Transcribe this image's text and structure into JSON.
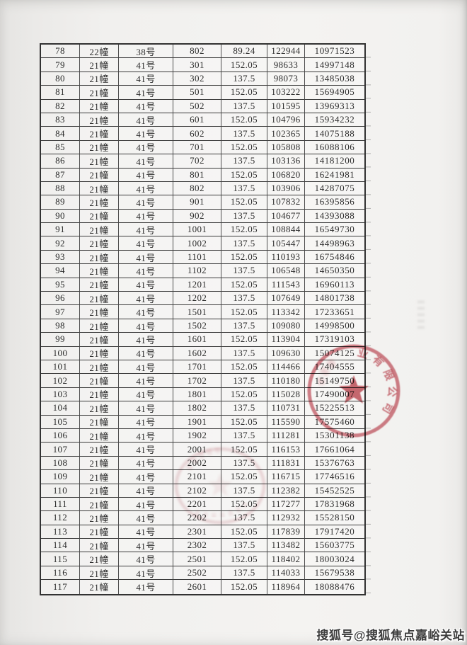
{
  "table": {
    "rows": [
      [
        "78",
        "22幢",
        "38号",
        "802",
        "89.24",
        "122944",
        "10971523"
      ],
      [
        "79",
        "21幢",
        "41号",
        "301",
        "152.05",
        "98633",
        "14997148"
      ],
      [
        "80",
        "21幢",
        "41号",
        "302",
        "137.5",
        "98073",
        "13485038"
      ],
      [
        "81",
        "21幢",
        "41号",
        "501",
        "152.05",
        "103222",
        "15694905"
      ],
      [
        "82",
        "21幢",
        "41号",
        "502",
        "137.5",
        "101595",
        "13969313"
      ],
      [
        "83",
        "21幢",
        "41号",
        "601",
        "152.05",
        "104796",
        "15934232"
      ],
      [
        "84",
        "21幢",
        "41号",
        "602",
        "137.5",
        "102365",
        "14075188"
      ],
      [
        "85",
        "21幢",
        "41号",
        "701",
        "152.05",
        "105808",
        "16088106"
      ],
      [
        "86",
        "21幢",
        "41号",
        "702",
        "137.5",
        "103136",
        "14181200"
      ],
      [
        "87",
        "21幢",
        "41号",
        "801",
        "152.05",
        "106820",
        "16241981"
      ],
      [
        "88",
        "21幢",
        "41号",
        "802",
        "137.5",
        "103906",
        "14287075"
      ],
      [
        "89",
        "21幢",
        "41号",
        "901",
        "152.05",
        "107832",
        "16395856"
      ],
      [
        "90",
        "21幢",
        "41号",
        "902",
        "137.5",
        "104677",
        "14393088"
      ],
      [
        "91",
        "21幢",
        "41号",
        "1001",
        "152.05",
        "108844",
        "16549730"
      ],
      [
        "92",
        "21幢",
        "41号",
        "1002",
        "137.5",
        "105447",
        "14498963"
      ],
      [
        "93",
        "21幢",
        "41号",
        "1101",
        "152.05",
        "110193",
        "16754846"
      ],
      [
        "94",
        "21幢",
        "41号",
        "1102",
        "137.5",
        "106548",
        "14650350"
      ],
      [
        "95",
        "21幢",
        "41号",
        "1201",
        "152.05",
        "111543",
        "16960113"
      ],
      [
        "96",
        "21幢",
        "41号",
        "1202",
        "137.5",
        "107649",
        "14801738"
      ],
      [
        "97",
        "21幢",
        "41号",
        "1501",
        "152.05",
        "113342",
        "17233651"
      ],
      [
        "98",
        "21幢",
        "41号",
        "1502",
        "137.5",
        "109080",
        "14998500"
      ],
      [
        "99",
        "21幢",
        "41号",
        "1601",
        "152.05",
        "113904",
        "17319103"
      ],
      [
        "100",
        "21幢",
        "41号",
        "1602",
        "137.5",
        "109630",
        "15074125"
      ],
      [
        "101",
        "21幢",
        "41号",
        "1701",
        "152.05",
        "114466",
        "17404555"
      ],
      [
        "102",
        "21幢",
        "41号",
        "1702",
        "137.5",
        "110180",
        "15149750"
      ],
      [
        "103",
        "21幢",
        "41号",
        "1801",
        "152.05",
        "115028",
        "17490007"
      ],
      [
        "104",
        "21幢",
        "41号",
        "1802",
        "137.5",
        "110731",
        "15225513"
      ],
      [
        "105",
        "21幢",
        "41号",
        "1901",
        "152.05",
        "115590",
        "17575460"
      ],
      [
        "106",
        "21幢",
        "41号",
        "1902",
        "137.5",
        "111281",
        "15301138"
      ],
      [
        "107",
        "21幢",
        "41号",
        "2001",
        "152.05",
        "116153",
        "17661064"
      ],
      [
        "108",
        "21幢",
        "41号",
        "2002",
        "137.5",
        "111831",
        "15376763"
      ],
      [
        "109",
        "21幢",
        "41号",
        "2101",
        "152.05",
        "116715",
        "17746516"
      ],
      [
        "110",
        "21幢",
        "41号",
        "2102",
        "137.5",
        "112382",
        "15452525"
      ],
      [
        "111",
        "21幢",
        "41号",
        "2201",
        "152.05",
        "117277",
        "17831968"
      ],
      [
        "112",
        "21幢",
        "41号",
        "2202",
        "137.5",
        "112932",
        "15528150"
      ],
      [
        "113",
        "21幢",
        "41号",
        "2301",
        "152.05",
        "117839",
        "17917420"
      ],
      [
        "114",
        "21幢",
        "41号",
        "2302",
        "137.5",
        "113482",
        "15603775"
      ],
      [
        "115",
        "21幢",
        "41号",
        "2501",
        "152.05",
        "118402",
        "18003024"
      ],
      [
        "116",
        "21幢",
        "41号",
        "2502",
        "137.5",
        "114033",
        "15679538"
      ],
      [
        "117",
        "21幢",
        "41号",
        "2601",
        "152.05",
        "118964",
        "18088476"
      ]
    ]
  },
  "seal": {
    "visible_text": "业有限公司",
    "color": "#c24f58"
  },
  "faint_seal": {
    "color": "#c97f88"
  },
  "watermark": {
    "text": "搜狐号@搜狐焦点嘉峪关站",
    "color": "#3d3d3d"
  }
}
